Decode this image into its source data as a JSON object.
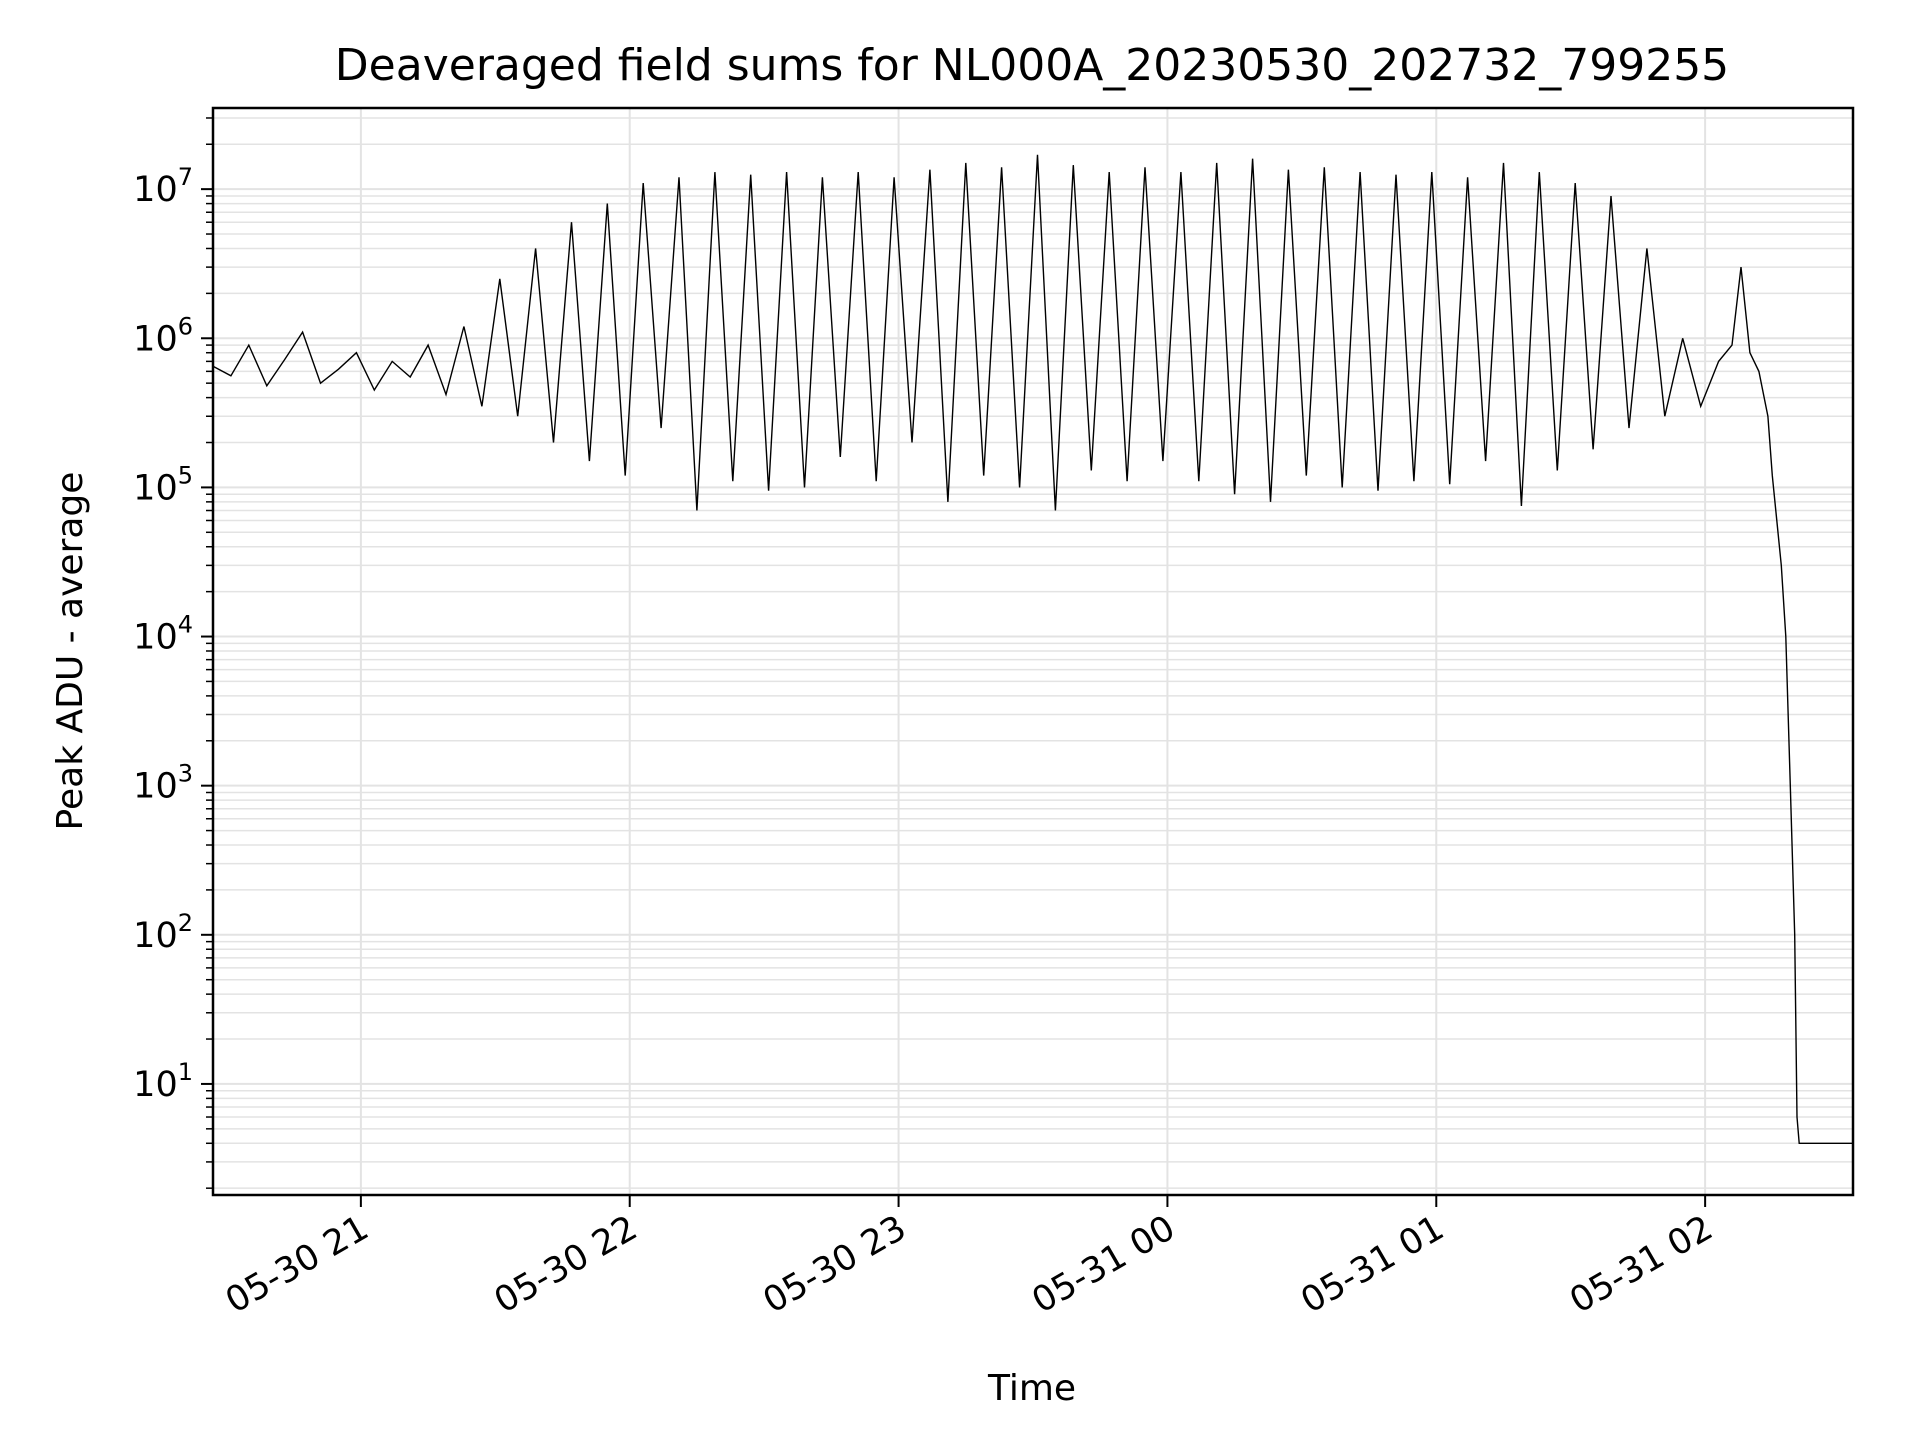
{
  "chart_data": {
    "type": "line",
    "title": "Deaveraged field sums for NL000A_20230530_202732_799255",
    "xlabel": "Time",
    "ylabel": "Peak ADU - average",
    "yscale": "log",
    "xlim": [
      "05-30 20:27",
      "05-31 02:33"
    ],
    "ylim": [
      1.8,
      35000000
    ],
    "grid": true,
    "color": "#000000",
    "x_ticks": [
      {
        "label": "05-30 21",
        "time": "05-30 21:00"
      },
      {
        "label": "05-30 22",
        "time": "05-30 22:00"
      },
      {
        "label": "05-30 23",
        "time": "05-30 23:00"
      },
      {
        "label": "05-31 00",
        "time": "05-31 00:00"
      },
      {
        "label": "05-31 01",
        "time": "05-31 01:00"
      },
      {
        "label": "05-31 02",
        "time": "05-31 02:00"
      }
    ],
    "y_ticks": [
      {
        "base": "10",
        "exp": "1",
        "value": 10
      },
      {
        "base": "10",
        "exp": "2",
        "value": 100
      },
      {
        "base": "10",
        "exp": "3",
        "value": 1000
      },
      {
        "base": "10",
        "exp": "4",
        "value": 10000
      },
      {
        "base": "10",
        "exp": "5",
        "value": 100000
      },
      {
        "base": "10",
        "exp": "6",
        "value": 1000000
      },
      {
        "base": "10",
        "exp": "7",
        "value": 10000000
      }
    ],
    "series": [
      {
        "points": [
          [
            "05-30 20:27",
            650000
          ],
          [
            "05-30 20:31",
            560000
          ],
          [
            "05-30 20:35",
            900000
          ],
          [
            "05-30 20:39",
            480000
          ],
          [
            "05-30 20:43",
            720000
          ],
          [
            "05-30 20:47",
            1100000
          ],
          [
            "05-30 20:51",
            500000
          ],
          [
            "05-30 20:55",
            620000
          ],
          [
            "05-30 20:59",
            800000
          ],
          [
            "05-30 21:03",
            450000
          ],
          [
            "05-30 21:07",
            700000
          ],
          [
            "05-30 21:11",
            550000
          ],
          [
            "05-30 21:15",
            900000
          ],
          [
            "05-30 21:19",
            420000
          ],
          [
            "05-30 21:23",
            1200000
          ],
          [
            "05-30 21:27",
            350000
          ],
          [
            "05-30 21:31",
            2500000
          ],
          [
            "05-30 21:35",
            300000
          ],
          [
            "05-30 21:39",
            4000000
          ],
          [
            "05-30 21:43",
            200000
          ],
          [
            "05-30 21:47",
            6000000
          ],
          [
            "05-30 21:51",
            150000
          ],
          [
            "05-30 21:55",
            8000000
          ],
          [
            "05-30 21:59",
            120000
          ],
          [
            "05-30 22:03",
            11000000
          ],
          [
            "05-30 22:07",
            250000
          ],
          [
            "05-30 22:11",
            12000000
          ],
          [
            "05-30 22:15",
            70000
          ],
          [
            "05-30 22:19",
            13000000
          ],
          [
            "05-30 22:23",
            110000
          ],
          [
            "05-30 22:27",
            12500000
          ],
          [
            "05-30 22:31",
            95000
          ],
          [
            "05-30 22:35",
            13000000
          ],
          [
            "05-30 22:39",
            100000
          ],
          [
            "05-30 22:43",
            12000000
          ],
          [
            "05-30 22:47",
            160000
          ],
          [
            "05-30 22:51",
            13000000
          ],
          [
            "05-30 22:55",
            110000
          ],
          [
            "05-30 22:59",
            12000000
          ],
          [
            "05-30 23:03",
            200000
          ],
          [
            "05-30 23:07",
            13500000
          ],
          [
            "05-30 23:11",
            80000
          ],
          [
            "05-30 23:15",
            15000000
          ],
          [
            "05-30 23:19",
            120000
          ],
          [
            "05-30 23:23",
            14000000
          ],
          [
            "05-30 23:27",
            100000
          ],
          [
            "05-30 23:31",
            17000000
          ],
          [
            "05-30 23:35",
            70000
          ],
          [
            "05-30 23:39",
            14500000
          ],
          [
            "05-30 23:43",
            130000
          ],
          [
            "05-30 23:47",
            13000000
          ],
          [
            "05-30 23:51",
            110000
          ],
          [
            "05-30 23:55",
            14000000
          ],
          [
            "05-30 23:59",
            150000
          ],
          [
            "05-31 00:03",
            13000000
          ],
          [
            "05-31 00:07",
            110000
          ],
          [
            "05-31 00:11",
            15000000
          ],
          [
            "05-31 00:15",
            90000
          ],
          [
            "05-31 00:19",
            16000000
          ],
          [
            "05-31 00:23",
            80000
          ],
          [
            "05-31 00:27",
            13500000
          ],
          [
            "05-31 00:31",
            120000
          ],
          [
            "05-31 00:35",
            14000000
          ],
          [
            "05-31 00:39",
            100000
          ],
          [
            "05-31 00:43",
            13000000
          ],
          [
            "05-31 00:47",
            95000
          ],
          [
            "05-31 00:51",
            12500000
          ],
          [
            "05-31 00:55",
            110000
          ],
          [
            "05-31 00:59",
            13000000
          ],
          [
            "05-31 01:03",
            105000
          ],
          [
            "05-31 01:07",
            12000000
          ],
          [
            "05-31 01:11",
            150000
          ],
          [
            "05-31 01:15",
            15000000
          ],
          [
            "05-31 01:19",
            75000
          ],
          [
            "05-31 01:23",
            13000000
          ],
          [
            "05-31 01:27",
            130000
          ],
          [
            "05-31 01:31",
            11000000
          ],
          [
            "05-31 01:35",
            180000
          ],
          [
            "05-31 01:39",
            9000000
          ],
          [
            "05-31 01:43",
            250000
          ],
          [
            "05-31 01:47",
            4000000
          ],
          [
            "05-31 01:51",
            300000
          ],
          [
            "05-31 01:55",
            1000000
          ],
          [
            "05-31 01:59",
            350000
          ],
          [
            "05-31 02:03",
            700000
          ],
          [
            "05-31 02:06",
            900000
          ],
          [
            "05-31 02:08",
            3000000
          ],
          [
            "05-31 02:10",
            800000
          ],
          [
            "05-31 02:12",
            600000
          ],
          [
            "05-31 02:14",
            300000
          ],
          [
            "05-31 02:15",
            120000
          ],
          [
            "05-31 02:16",
            60000
          ],
          [
            "05-31 02:17",
            30000
          ],
          [
            "05-31 02:18",
            10000
          ],
          [
            "05-31 02:19",
            1000
          ],
          [
            "05-31 02:20",
            100
          ],
          [
            "05-31 02:20.5",
            6
          ],
          [
            "05-31 02:21",
            4
          ],
          [
            "05-31 02:25",
            4
          ],
          [
            "05-31 02:29",
            4
          ],
          [
            "05-31 02:33",
            4
          ]
        ]
      }
    ]
  }
}
